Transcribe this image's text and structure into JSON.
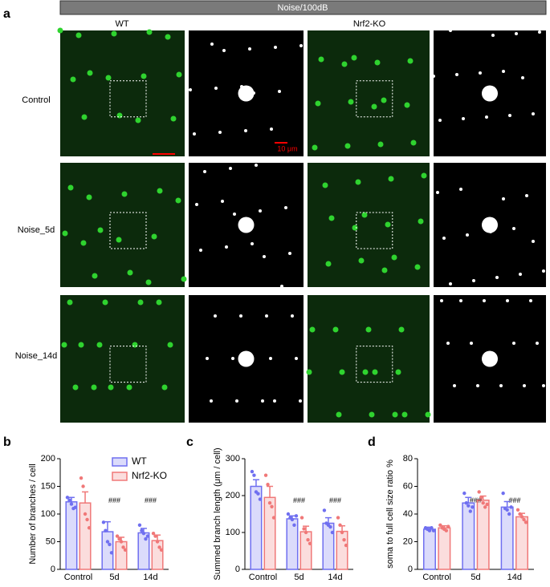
{
  "figure": {
    "panel_a": "a",
    "panel_b": "b",
    "panel_c": "c",
    "panel_d": "d",
    "header": "Noise/100dB",
    "columns": [
      "WT",
      "Nrf2-KO"
    ],
    "rows": [
      "Control",
      "Noise_5d",
      "Noise_14d"
    ],
    "scale_label": "10 μm"
  },
  "chart_data": [
    {
      "type": "bar",
      "ylabel": "Number of branches / cell",
      "categories": [
        "Control",
        "5d",
        "14d"
      ],
      "ylim": [
        0,
        200
      ],
      "yticks": [
        0,
        50,
        100,
        150,
        200
      ],
      "legend": "top-right",
      "annotations": [
        null,
        "###",
        "###"
      ],
      "series": [
        {
          "name": "WT",
          "color": "#6f6ff0",
          "values": [
            122,
            68,
            66
          ],
          "errors": [
            8,
            18,
            8
          ],
          "points": [
            [
              130,
              125,
              118,
              110,
              112
            ],
            [
              85,
              70,
              50,
              45,
              30
            ],
            [
              80,
              70,
              65,
              55,
              60
            ]
          ]
        },
        {
          "name": "Nrf2-KO",
          "color": "#f07878",
          "values": [
            120,
            50,
            52
          ],
          "errors": [
            20,
            8,
            10
          ],
          "points": [
            [
              165,
              150,
              100,
              90,
              75
            ],
            [
              60,
              55,
              50,
              40,
              35
            ],
            [
              65,
              60,
              50,
              40,
              35
            ]
          ]
        }
      ]
    },
    {
      "type": "bar",
      "ylabel": "Summed branch length (μm / cell)",
      "categories": [
        "Control",
        "5d",
        "14d"
      ],
      "ylim": [
        0,
        300
      ],
      "yticks": [
        0,
        100,
        200,
        300
      ],
      "annotations": [
        null,
        "###",
        "###"
      ],
      "series": [
        {
          "color": "#6f6ff0",
          "values": [
            225,
            137,
            125
          ],
          "errors": [
            18,
            8,
            15
          ],
          "points": [
            [
              265,
              255,
              210,
              205,
              190
            ],
            [
              150,
              140,
              135,
              120,
              145
            ],
            [
              160,
              125,
              120,
              115,
              100
            ]
          ]
        },
        {
          "color": "#f07878",
          "values": [
            195,
            102,
            103
          ],
          "errors": [
            30,
            15,
            15
          ],
          "points": [
            [
              255,
              230,
              180,
              170,
              140
            ],
            [
              140,
              110,
              100,
              80,
              70
            ],
            [
              140,
              120,
              100,
              80,
              65
            ]
          ]
        }
      ]
    },
    {
      "type": "bar",
      "ylabel": "soma to full cell size ratio %",
      "categories": [
        "Control",
        "5d",
        "14d"
      ],
      "ylim": [
        0,
        80
      ],
      "yticks": [
        0,
        20,
        40,
        60,
        80
      ],
      "annotations": [
        null,
        "###",
        "###"
      ],
      "series": [
        {
          "color": "#6f6ff0",
          "values": [
            29,
            48,
            45
          ],
          "errors": [
            1.5,
            4,
            4
          ],
          "points": [
            [
              30,
              29,
              28,
              30,
              28
            ],
            [
              55,
              48,
              46,
              42,
              45
            ],
            [
              55,
              44,
              43,
              40,
              45
            ]
          ]
        },
        {
          "color": "#f07878",
          "values": [
            30,
            50,
            38
          ],
          "errors": [
            1.5,
            3,
            2.5
          ],
          "points": [
            [
              32,
              30,
              29,
              28,
              31
            ],
            [
              56,
              52,
              48,
              45,
              47
            ],
            [
              43,
              40,
              38,
              36,
              34
            ]
          ]
        }
      ]
    }
  ]
}
